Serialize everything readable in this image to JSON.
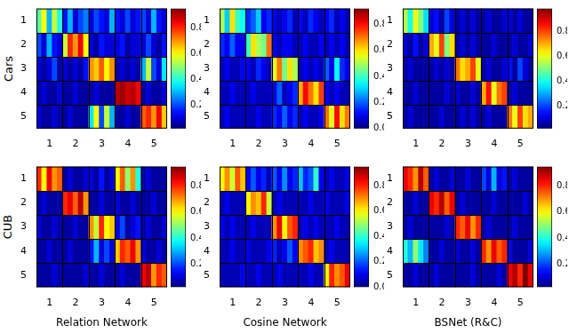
{
  "chart_data": [
    {
      "type": "heatmap",
      "y_label": "Cars",
      "color": "jet",
      "categories": [
        null,
        null,
        "1",
        null,
        null,
        null,
        null,
        "2",
        null,
        null,
        null,
        null,
        "3",
        null,
        null,
        null,
        null,
        "4",
        null,
        null,
        null,
        null,
        "5",
        null,
        null
      ],
      "rows": [
        "1",
        "2",
        "3",
        "4",
        "5"
      ],
      "cells": [
        [
          0.45,
          0.6,
          0.3,
          0.55,
          0.4,
          0.15,
          0.3,
          0.1,
          0.2,
          0.25,
          0.1,
          0.2,
          0.15,
          0.1,
          0.3,
          0.15,
          0.1,
          0.2,
          0.1,
          0.15,
          0.2,
          0.1,
          0.3,
          0.15,
          0.1
        ],
        [
          0.2,
          0.1,
          0.3,
          0.15,
          0.1,
          0.55,
          0.8,
          0.7,
          0.85,
          0.6,
          0.1,
          0.05,
          0.15,
          0.1,
          0.1,
          0.1,
          0.15,
          0.05,
          0.1,
          0.1,
          0.1,
          0.2,
          0.1,
          0.05,
          0.15
        ],
        [
          0.1,
          0.05,
          0.1,
          0.2,
          0.05,
          0.1,
          0.05,
          0.1,
          0.05,
          0.15,
          0.7,
          0.65,
          0.75,
          0.6,
          0.7,
          0.05,
          0.1,
          0.05,
          0.1,
          0.05,
          0.3,
          0.55,
          0.2,
          0.1,
          0.35
        ],
        [
          0.05,
          0.1,
          0.05,
          0.05,
          0.1,
          0.05,
          0.05,
          0.1,
          0.05,
          0.05,
          0.05,
          0.1,
          0.05,
          0.05,
          0.05,
          0.9,
          0.92,
          0.88,
          0.9,
          0.85,
          0.05,
          0.1,
          0.05,
          0.05,
          0.1
        ],
        [
          0.1,
          0.05,
          0.05,
          0.1,
          0.05,
          0.05,
          0.1,
          0.05,
          0.05,
          0.05,
          0.35,
          0.6,
          0.2,
          0.55,
          0.3,
          0.05,
          0.05,
          0.1,
          0.05,
          0.05,
          0.75,
          0.8,
          0.7,
          0.85,
          0.65
        ]
      ],
      "colorbar": {
        "range": [
          0.02,
          0.95
        ],
        "ticks": [
          0.2,
          0.4,
          0.6,
          0.8
        ]
      }
    },
    {
      "type": "heatmap",
      "color": "jet",
      "categories": [
        null,
        null,
        "1",
        null,
        null,
        null,
        null,
        "2",
        null,
        null,
        null,
        null,
        "3",
        null,
        null,
        null,
        null,
        "4",
        null,
        null,
        null,
        null,
        "5",
        null,
        null
      ],
      "rows": [
        "1",
        "2",
        "3",
        "4",
        "5"
      ],
      "cells": [
        [
          0.5,
          0.3,
          0.6,
          0.4,
          0.35,
          0.15,
          0.2,
          0.3,
          0.1,
          0.15,
          0.1,
          0.05,
          0.1,
          0.15,
          0.05,
          0.1,
          0.05,
          0.15,
          0.1,
          0.05,
          0.1,
          0.15,
          0.05,
          0.1,
          0.05
        ],
        [
          0.15,
          0.1,
          0.2,
          0.1,
          0.1,
          0.4,
          0.6,
          0.5,
          0.45,
          0.7,
          0.1,
          0.05,
          0.1,
          0.1,
          0.05,
          0.05,
          0.1,
          0.05,
          0.05,
          0.1,
          0.05,
          0.1,
          0.05,
          0.1,
          0.05
        ],
        [
          0.05,
          0.1,
          0.05,
          0.05,
          0.1,
          0.1,
          0.05,
          0.15,
          0.1,
          0.05,
          0.55,
          0.7,
          0.45,
          0.6,
          0.5,
          0.05,
          0.1,
          0.05,
          0.1,
          0.05,
          0.2,
          0.1,
          0.35,
          0.15,
          0.1
        ],
        [
          0.05,
          0.05,
          0.1,
          0.05,
          0.05,
          0.05,
          0.1,
          0.05,
          0.05,
          0.05,
          0.1,
          0.2,
          0.05,
          0.1,
          0.15,
          0.65,
          0.8,
          0.7,
          0.6,
          0.75,
          0.1,
          0.05,
          0.1,
          0.05,
          0.05
        ],
        [
          0.05,
          0.1,
          0.05,
          0.05,
          0.05,
          0.05,
          0.05,
          0.1,
          0.05,
          0.05,
          0.15,
          0.1,
          0.2,
          0.1,
          0.15,
          0.05,
          0.1,
          0.05,
          0.05,
          0.1,
          0.7,
          0.55,
          0.8,
          0.6,
          0.7
        ]
      ],
      "colorbar": {
        "range": [
          0,
          0.92
        ],
        "ticks": [
          {
            "value": 0,
            "label": "0.0"
          },
          0.2,
          0.4,
          0.6,
          0.8
        ]
      }
    },
    {
      "type": "heatmap",
      "color": "jet",
      "categories": [
        null,
        null,
        "1",
        null,
        null,
        null,
        null,
        "2",
        null,
        null,
        null,
        null,
        "3",
        null,
        null,
        null,
        null,
        "4",
        null,
        null,
        null,
        null,
        "5",
        null,
        null
      ],
      "rows": [
        "1",
        "2",
        "3",
        "4",
        "5"
      ],
      "cells": [
        [
          0.55,
          0.4,
          0.6,
          0.5,
          0.35,
          0.1,
          0.15,
          0.05,
          0.2,
          0.1,
          0.05,
          0.1,
          0.05,
          0.1,
          0.05,
          0.05,
          0.1,
          0.05,
          0.05,
          0.1,
          0.1,
          0.05,
          0.1,
          0.05,
          0.05
        ],
        [
          0.1,
          0.05,
          0.15,
          0.05,
          0.1,
          0.7,
          0.6,
          0.8,
          0.5,
          0.65,
          0.05,
          0.1,
          0.05,
          0.1,
          0.05,
          0.05,
          0.05,
          0.1,
          0.05,
          0.05,
          0.05,
          0.1,
          0.05,
          0.05,
          0.1
        ],
        [
          0.05,
          0.1,
          0.05,
          0.05,
          0.05,
          0.05,
          0.1,
          0.05,
          0.1,
          0.05,
          0.75,
          0.65,
          0.7,
          0.8,
          0.6,
          0.05,
          0.1,
          0.05,
          0.05,
          0.1,
          0.15,
          0.05,
          0.2,
          0.1,
          0.05
        ],
        [
          0.05,
          0.05,
          0.1,
          0.05,
          0.05,
          0.05,
          0.05,
          0.05,
          0.1,
          0.05,
          0.1,
          0.05,
          0.05,
          0.1,
          0.05,
          0.7,
          0.85,
          0.6,
          0.75,
          0.8,
          0.05,
          0.1,
          0.05,
          0.05,
          0.05
        ],
        [
          0.05,
          0.1,
          0.05,
          0.05,
          0.05,
          0.05,
          0.05,
          0.1,
          0.05,
          0.05,
          0.05,
          0.1,
          0.05,
          0.1,
          0.05,
          0.05,
          0.1,
          0.05,
          0.05,
          0.05,
          0.75,
          0.6,
          0.8,
          0.65,
          0.7
        ]
      ],
      "colorbar": {
        "range": [
          0.02,
          0.98
        ],
        "ticks": [
          0.2,
          0.4,
          0.6,
          0.8
        ]
      }
    },
    {
      "type": "heatmap",
      "y_label": "CUB",
      "x_label": "Relation Network",
      "color": "jet",
      "categories": [
        null,
        null,
        "1",
        null,
        null,
        null,
        null,
        "2",
        null,
        null,
        null,
        null,
        "3",
        null,
        null,
        null,
        null,
        "4",
        null,
        null,
        null,
        null,
        "5",
        null,
        null
      ],
      "rows": [
        "1",
        "2",
        "3",
        "4",
        "5"
      ],
      "cells": [
        [
          0.8,
          0.6,
          0.85,
          0.7,
          0.75,
          0.05,
          0.1,
          0.05,
          0.05,
          0.1,
          0.1,
          0.05,
          0.15,
          0.05,
          0.1,
          0.6,
          0.75,
          0.5,
          0.7,
          0.4,
          0.05,
          0.1,
          0.05,
          0.05,
          0.05
        ],
        [
          0.05,
          0.1,
          0.05,
          0.05,
          0.05,
          0.8,
          0.85,
          0.75,
          0.9,
          0.7,
          0.05,
          0.05,
          0.1,
          0.05,
          0.05,
          0.1,
          0.05,
          0.05,
          0.1,
          0.05,
          0.05,
          0.05,
          0.1,
          0.05,
          0.05
        ],
        [
          0.1,
          0.05,
          0.05,
          0.1,
          0.05,
          0.05,
          0.05,
          0.1,
          0.05,
          0.05,
          0.7,
          0.55,
          0.8,
          0.6,
          0.65,
          0.1,
          0.2,
          0.05,
          0.1,
          0.15,
          0.05,
          0.1,
          0.05,
          0.05,
          0.1
        ],
        [
          0.05,
          0.05,
          0.1,
          0.05,
          0.05,
          0.05,
          0.1,
          0.05,
          0.05,
          0.05,
          0.15,
          0.3,
          0.1,
          0.2,
          0.1,
          0.65,
          0.8,
          0.75,
          0.85,
          0.7,
          0.1,
          0.05,
          0.05,
          0.1,
          0.05
        ],
        [
          0.05,
          0.05,
          0.05,
          0.1,
          0.05,
          0.05,
          0.05,
          0.05,
          0.05,
          0.1,
          0.05,
          0.05,
          0.1,
          0.05,
          0.05,
          0.05,
          0.1,
          0.05,
          0.05,
          0.05,
          0.85,
          0.9,
          0.7,
          0.8,
          0.75
        ]
      ],
      "colorbar": {
        "range": [
          0.02,
          0.95
        ],
        "ticks": [
          0.2,
          0.4,
          0.6,
          0.8
        ]
      }
    },
    {
      "type": "heatmap",
      "x_label": "Cosine Network",
      "color": "jet",
      "categories": [
        null,
        null,
        "1",
        null,
        null,
        null,
        null,
        "2",
        null,
        null,
        null,
        null,
        "3",
        null,
        null,
        null,
        null,
        "4",
        null,
        null,
        null,
        null,
        "5",
        null,
        null
      ],
      "rows": [
        "1",
        "2",
        "3",
        "4",
        "5"
      ],
      "cells": [
        [
          0.6,
          0.7,
          0.55,
          0.75,
          0.65,
          0.1,
          0.2,
          0.1,
          0.15,
          0.05,
          0.2,
          0.1,
          0.25,
          0.1,
          0.15,
          0.3,
          0.15,
          0.2,
          0.4,
          0.1,
          0.05,
          0.1,
          0.05,
          0.05,
          0.1
        ],
        [
          0.05,
          0.1,
          0.05,
          0.05,
          0.05,
          0.6,
          0.7,
          0.65,
          0.8,
          0.55,
          0.05,
          0.1,
          0.05,
          0.05,
          0.05,
          0.05,
          0.05,
          0.1,
          0.05,
          0.05,
          0.1,
          0.05,
          0.05,
          0.05,
          0.1
        ],
        [
          0.1,
          0.05,
          0.1,
          0.05,
          0.05,
          0.05,
          0.1,
          0.05,
          0.05,
          0.05,
          0.7,
          0.85,
          0.6,
          0.75,
          0.8,
          0.05,
          0.1,
          0.05,
          0.1,
          0.05,
          0.05,
          0.05,
          0.1,
          0.05,
          0.05
        ],
        [
          0.05,
          0.05,
          0.1,
          0.05,
          0.05,
          0.1,
          0.05,
          0.05,
          0.05,
          0.1,
          0.15,
          0.05,
          0.1,
          0.2,
          0.1,
          0.7,
          0.75,
          0.8,
          0.65,
          0.7,
          0.05,
          0.1,
          0.05,
          0.05,
          0.05
        ],
        [
          0.05,
          0.05,
          0.05,
          0.05,
          0.1,
          0.05,
          0.05,
          0.1,
          0.05,
          0.05,
          0.05,
          0.1,
          0.05,
          0.05,
          0.05,
          0.05,
          0.05,
          0.1,
          0.05,
          0.05,
          0.6,
          0.8,
          0.7,
          0.75,
          0.85
        ]
      ],
      "colorbar": {
        "range": [
          0,
          0.95
        ],
        "ticks": [
          {
            "value": 0,
            "label": "0.0"
          },
          0.2,
          0.4,
          0.6,
          0.8
        ]
      }
    },
    {
      "type": "heatmap",
      "x_label": "BSNet (R&C)",
      "color": "jet",
      "categories": [
        null,
        null,
        "1",
        null,
        null,
        null,
        null,
        "2",
        null,
        null,
        null,
        null,
        "3",
        null,
        null,
        null,
        null,
        "4",
        null,
        null,
        null,
        null,
        "5",
        null,
        null
      ],
      "rows": [
        "1",
        "2",
        "3",
        "4",
        "5"
      ],
      "cells": [
        [
          0.85,
          0.8,
          0.7,
          0.9,
          0.75,
          0.05,
          0.1,
          0.05,
          0.05,
          0.1,
          0.05,
          0.05,
          0.1,
          0.05,
          0.05,
          0.2,
          0.1,
          0.3,
          0.1,
          0.15,
          0.05,
          0.1,
          0.05,
          0.05,
          0.05
        ],
        [
          0.05,
          0.05,
          0.1,
          0.05,
          0.05,
          0.85,
          0.8,
          0.9,
          0.75,
          0.85,
          0.05,
          0.1,
          0.05,
          0.05,
          0.05,
          0.05,
          0.05,
          0.1,
          0.05,
          0.05,
          0.05,
          0.05,
          0.05,
          0.1,
          0.05
        ],
        [
          0.05,
          0.1,
          0.05,
          0.05,
          0.05,
          0.05,
          0.05,
          0.05,
          0.1,
          0.05,
          0.8,
          0.75,
          0.85,
          0.7,
          0.8,
          0.05,
          0.1,
          0.05,
          0.05,
          0.05,
          0.05,
          0.1,
          0.05,
          0.05,
          0.05
        ],
        [
          0.4,
          0.3,
          0.5,
          0.35,
          0.25,
          0.05,
          0.05,
          0.1,
          0.05,
          0.05,
          0.1,
          0.05,
          0.05,
          0.1,
          0.05,
          0.8,
          0.7,
          0.85,
          0.75,
          0.8,
          0.1,
          0.05,
          0.05,
          0.05,
          0.1
        ],
        [
          0.05,
          0.05,
          0.1,
          0.05,
          0.05,
          0.05,
          0.1,
          0.05,
          0.05,
          0.05,
          0.05,
          0.05,
          0.05,
          0.1,
          0.05,
          0.05,
          0.05,
          0.05,
          0.1,
          0.05,
          0.85,
          0.9,
          0.8,
          0.95,
          0.85
        ]
      ],
      "colorbar": {
        "range": [
          0.02,
          0.95
        ],
        "ticks": [
          0.2,
          0.4,
          0.6,
          0.8
        ]
      }
    }
  ]
}
